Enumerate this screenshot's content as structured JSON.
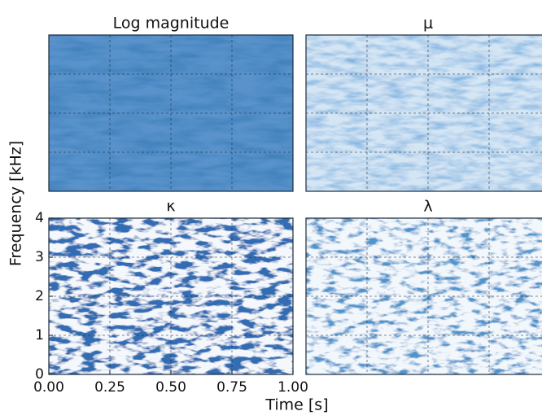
{
  "chart_data": [
    {
      "type": "heatmap",
      "title": "Log magnitude",
      "grid": true
    },
    {
      "type": "heatmap",
      "title": "μ",
      "grid": true
    },
    {
      "type": "heatmap",
      "title": "κ",
      "grid": true,
      "xlabel": "Time [s]",
      "ylabel": "Frequency [kHz]",
      "xlim": [
        0,
        1
      ],
      "ylim": [
        0,
        4
      ],
      "xticks": [
        {
          "value": 0,
          "label": "0.00"
        },
        {
          "value": 0.25,
          "label": "0.25"
        },
        {
          "value": 0.5,
          "label": "0.50"
        },
        {
          "value": 0.75,
          "label": "0.75"
        },
        {
          "value": 1,
          "label": "1.00"
        }
      ],
      "yticks": [
        0,
        1,
        2,
        3,
        4
      ]
    },
    {
      "type": "heatmap",
      "title": "λ",
      "grid": true
    }
  ]
}
